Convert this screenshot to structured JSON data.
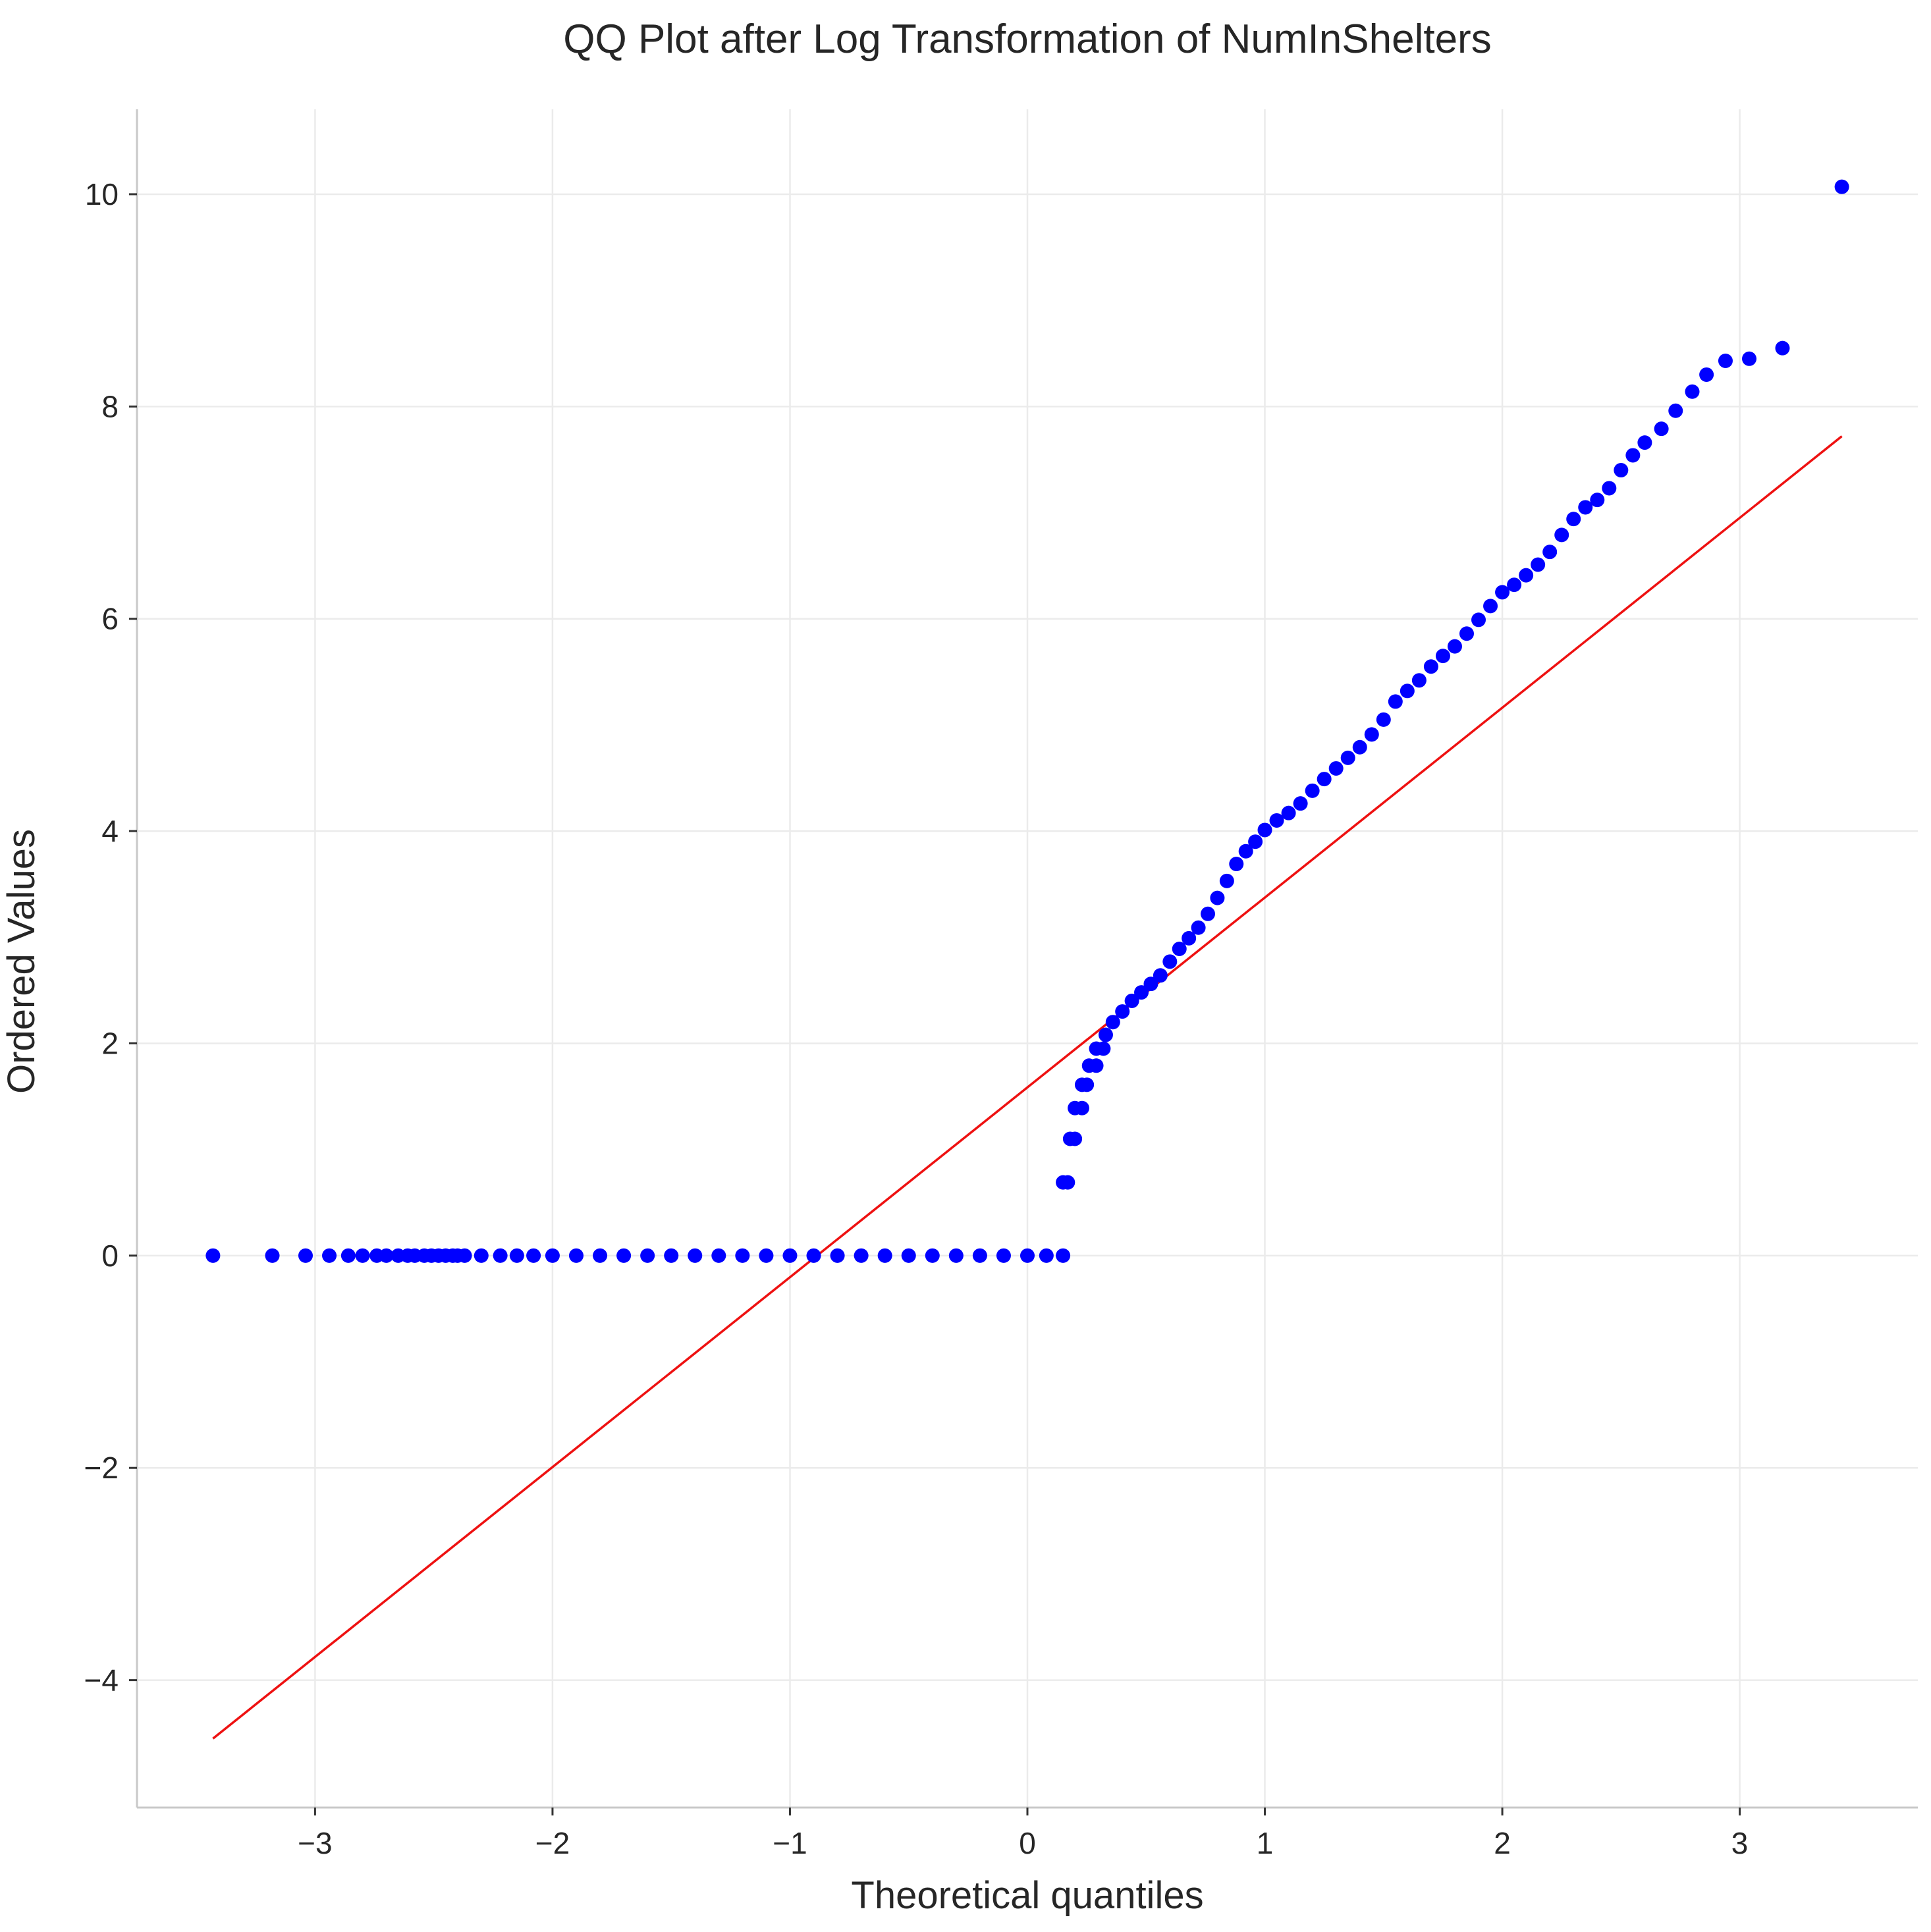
{
  "chart_data": {
    "type": "scatter",
    "title": "QQ Plot after Log Transformation of NumInShelters",
    "xlabel": "Theoretical quantiles",
    "ylabel": "Ordered Values",
    "xlim": [
      -3.75,
      3.75
    ],
    "ylim": [
      -5.2,
      10.8
    ],
    "xticks": [
      -3,
      -2,
      -1,
      0,
      1,
      2,
      3
    ],
    "yticks": [
      -4,
      -2,
      0,
      2,
      4,
      6,
      8,
      10
    ],
    "xtick_labels": [
      "−3",
      "−2",
      "−1",
      "0",
      "1",
      "2",
      "3"
    ],
    "ytick_labels": [
      "−4",
      "−2",
      "0",
      "2",
      "4",
      "6",
      "8",
      "10"
    ],
    "grid": true,
    "legend": "none",
    "colors": {
      "points": "#0000ff",
      "fit_line": "#ee1111"
    },
    "fit_line": {
      "name": "",
      "x": [
        -3.43,
        3.43
      ],
      "y": [
        -4.55,
        7.72
      ]
    },
    "series": [
      {
        "name": "",
        "points": [
          [
            -3.43,
            0
          ],
          [
            -3.18,
            0
          ],
          [
            -3.04,
            0
          ],
          [
            -2.94,
            0
          ],
          [
            -2.86,
            0
          ],
          [
            -2.8,
            0
          ],
          [
            -2.74,
            0
          ],
          [
            -2.7,
            0
          ],
          [
            -2.65,
            0
          ],
          [
            -2.61,
            0
          ],
          [
            -2.58,
            0
          ],
          [
            -2.54,
            0
          ],
          [
            -2.51,
            0
          ],
          [
            -2.48,
            0
          ],
          [
            -2.45,
            0
          ],
          [
            -2.42,
            0
          ],
          [
            -2.4,
            0
          ],
          [
            -2.37,
            0
          ],
          [
            -2.3,
            0
          ],
          [
            -2.22,
            0
          ],
          [
            -2.15,
            0
          ],
          [
            -2.08,
            0
          ],
          [
            -2.0,
            0
          ],
          [
            -1.9,
            0
          ],
          [
            -1.8,
            0
          ],
          [
            -1.7,
            0
          ],
          [
            -1.6,
            0
          ],
          [
            -1.5,
            0
          ],
          [
            -1.4,
            0
          ],
          [
            -1.3,
            0
          ],
          [
            -1.2,
            0
          ],
          [
            -1.1,
            0
          ],
          [
            -1.0,
            0
          ],
          [
            -0.9,
            0
          ],
          [
            -0.8,
            0
          ],
          [
            -0.7,
            0
          ],
          [
            -0.6,
            0
          ],
          [
            -0.5,
            0
          ],
          [
            -0.4,
            0
          ],
          [
            -0.3,
            0
          ],
          [
            -0.2,
            0
          ],
          [
            -0.1,
            0
          ],
          [
            0.0,
            0
          ],
          [
            0.08,
            0
          ],
          [
            0.15,
            0
          ],
          [
            0.15,
            0.69
          ],
          [
            0.17,
            0.69
          ],
          [
            0.18,
            1.1
          ],
          [
            0.2,
            1.1
          ],
          [
            0.2,
            1.39
          ],
          [
            0.23,
            1.39
          ],
          [
            0.23,
            1.61
          ],
          [
            0.25,
            1.61
          ],
          [
            0.26,
            1.79
          ],
          [
            0.29,
            1.79
          ],
          [
            0.29,
            1.95
          ],
          [
            0.32,
            1.95
          ],
          [
            0.33,
            2.08
          ],
          [
            0.36,
            2.2
          ],
          [
            0.4,
            2.3
          ],
          [
            0.44,
            2.4
          ],
          [
            0.48,
            2.48
          ],
          [
            0.52,
            2.56
          ],
          [
            0.56,
            2.64
          ],
          [
            0.6,
            2.77
          ],
          [
            0.64,
            2.89
          ],
          [
            0.68,
            2.99
          ],
          [
            0.72,
            3.09
          ],
          [
            0.76,
            3.22
          ],
          [
            0.8,
            3.37
          ],
          [
            0.84,
            3.53
          ],
          [
            0.88,
            3.69
          ],
          [
            0.92,
            3.81
          ],
          [
            0.96,
            3.9
          ],
          [
            1.0,
            4.01
          ],
          [
            1.05,
            4.1
          ],
          [
            1.1,
            4.17
          ],
          [
            1.15,
            4.26
          ],
          [
            1.2,
            4.38
          ],
          [
            1.25,
            4.49
          ],
          [
            1.3,
            4.59
          ],
          [
            1.35,
            4.69
          ],
          [
            1.4,
            4.79
          ],
          [
            1.45,
            4.91
          ],
          [
            1.5,
            5.05
          ],
          [
            1.55,
            5.22
          ],
          [
            1.6,
            5.32
          ],
          [
            1.65,
            5.42
          ],
          [
            1.7,
            5.55
          ],
          [
            1.75,
            5.65
          ],
          [
            1.8,
            5.74
          ],
          [
            1.85,
            5.86
          ],
          [
            1.9,
            5.99
          ],
          [
            1.95,
            6.12
          ],
          [
            2.0,
            6.25
          ],
          [
            2.05,
            6.32
          ],
          [
            2.1,
            6.41
          ],
          [
            2.15,
            6.51
          ],
          [
            2.2,
            6.63
          ],
          [
            2.25,
            6.79
          ],
          [
            2.3,
            6.94
          ],
          [
            2.35,
            7.05
          ],
          [
            2.4,
            7.12
          ],
          [
            2.45,
            7.23
          ],
          [
            2.5,
            7.4
          ],
          [
            2.55,
            7.54
          ],
          [
            2.6,
            7.66
          ],
          [
            2.67,
            7.79
          ],
          [
            2.73,
            7.96
          ],
          [
            2.8,
            8.14
          ],
          [
            2.86,
            8.3
          ],
          [
            2.94,
            8.43
          ],
          [
            3.04,
            8.45
          ],
          [
            3.18,
            8.55
          ],
          [
            3.43,
            10.07
          ]
        ]
      }
    ]
  }
}
